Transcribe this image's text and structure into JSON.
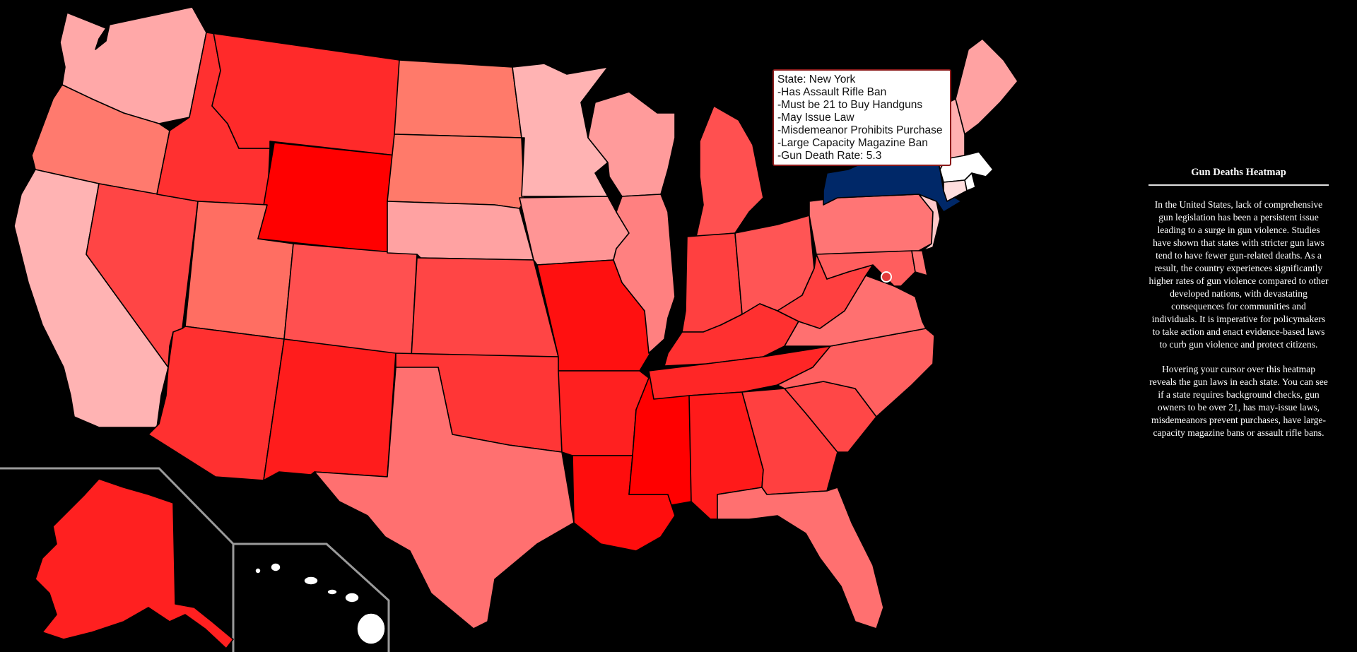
{
  "tooltip": {
    "state_line": "State: New York",
    "laws": [
      "-Has Assault Rifle Ban",
      "-Must be 21 to Buy Handguns",
      "-May Issue Law",
      "-Misdemeanor Prohibits Purchase",
      "-Large Capacity Magazine Ban",
      "-Gun Death Rate: 5.3"
    ]
  },
  "sidebar": {
    "title": "Gun Deaths Heatmap",
    "paragraph1": "In the United States, lack of comprehensive gun legislation has been a persistent issue leading to a surge in gun violence. Studies have shown that states with stricter gun laws tend to have fewer gun-related deaths. As a result, the country experiences significantly higher rates of gun violence compared to other developed nations, with devastating consequences for communities and individuals. It is imperative for policymakers to take action and enact evidence-based laws to curb gun violence and protect citizens.",
    "paragraph2": "Hovering your cursor over this heatmap reveals the gun laws in each state. You can see if a state requires background checks, gun owners to be over 21, has may-issue laws, misdemeanors prevent purchases, have large-capacity magazine bans or assault rifle bans."
  },
  "map": {
    "hovered_state": "New York",
    "hover_color": "#002868",
    "colors": {
      "WA": "#ffa8a8",
      "OR": "#ff7a6e",
      "CA": "#ffb3b3",
      "NV": "#ff4545",
      "ID": "#ff3030",
      "MT": "#ff2a2a",
      "WY": "#ff0000",
      "UT": "#ff6e62",
      "AZ": "#ff3030",
      "CO": "#ff5050",
      "NM": "#ff1c1c",
      "ND": "#ff7a6a",
      "SD": "#ff7a6a",
      "NE": "#ffa2a2",
      "KS": "#ff4545",
      "OK": "#ff3636",
      "TX": "#ff7070",
      "MN": "#ffb3b3",
      "IA": "#ff9595",
      "MO": "#ff1010",
      "AR": "#ff2020",
      "LA": "#ff0d0d",
      "WI": "#ff9b9b",
      "IL": "#ff8080",
      "MS": "#ff0000",
      "MI": "#ff5050",
      "IN": "#ff4040",
      "KY": "#ff3030",
      "TN": "#ff2626",
      "AL": "#ff1a1a",
      "OH": "#ff5555",
      "GA": "#ff4040",
      "FL": "#ff7070",
      "SC": "#ff4747",
      "NC": "#ff6060",
      "VA": "#ff7070",
      "WV": "#ff4040",
      "PA": "#ff7575",
      "NY": "#002868",
      "VT": "#ffa8a8",
      "NH": "#ffb0b0",
      "ME": "#ffa2a2",
      "MA": "#ffffff",
      "RI": "#ffffff",
      "CT": "#ffdede",
      "NJ": "#ffc8c8",
      "DE": "#ff7070",
      "MD": "#ff5e5e",
      "DC": "#e33a3a",
      "AK": "#ff2020",
      "HI": "#ffffff"
    }
  }
}
